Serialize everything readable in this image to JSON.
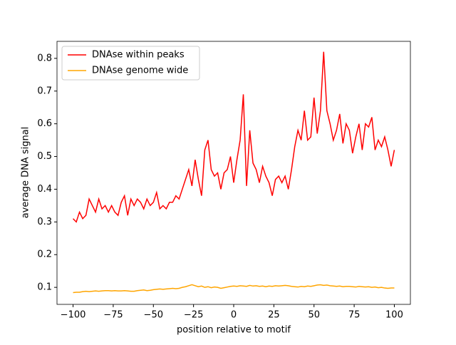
{
  "chart_data": {
    "type": "line",
    "xlabel": "position relative to motif",
    "ylabel": "average DNA signal",
    "legend": "upper left",
    "xlim": [
      -110,
      110
    ],
    "ylim": [
      0.048,
      0.852
    ],
    "xticks": [
      {
        "value": -100,
        "label": "−100"
      },
      {
        "value": -75,
        "label": "−75"
      },
      {
        "value": -50,
        "label": "−50"
      },
      {
        "value": -25,
        "label": "−25"
      },
      0,
      25,
      50,
      75,
      100
    ],
    "yticks": [
      0.1,
      0.2,
      0.3,
      0.4,
      0.5,
      0.6,
      0.7,
      0.8
    ],
    "x": [
      -100,
      -98,
      -96,
      -94,
      -92,
      -90,
      -88,
      -86,
      -84,
      -82,
      -80,
      -78,
      -76,
      -74,
      -72,
      -70,
      -68,
      -66,
      -64,
      -62,
      -60,
      -58,
      -56,
      -54,
      -52,
      -50,
      -48,
      -46,
      -44,
      -42,
      -40,
      -38,
      -36,
      -34,
      -32,
      -30,
      -28,
      -26,
      -24,
      -22,
      -20,
      -18,
      -16,
      -14,
      -12,
      -10,
      -8,
      -6,
      -4,
      -2,
      0,
      2,
      4,
      6,
      8,
      10,
      12,
      14,
      16,
      18,
      20,
      22,
      24,
      26,
      28,
      30,
      32,
      34,
      36,
      38,
      40,
      42,
      44,
      46,
      48,
      50,
      52,
      54,
      56,
      58,
      60,
      62,
      64,
      66,
      68,
      70,
      72,
      74,
      76,
      78,
      80,
      82,
      84,
      86,
      88,
      90,
      92,
      94,
      96,
      98,
      100
    ],
    "series": [
      {
        "name": "DNAse within peaks",
        "color": "#ff0000",
        "values": [
          0.31,
          0.3,
          0.33,
          0.31,
          0.32,
          0.37,
          0.35,
          0.33,
          0.37,
          0.34,
          0.35,
          0.33,
          0.35,
          0.33,
          0.32,
          0.36,
          0.38,
          0.32,
          0.37,
          0.35,
          0.37,
          0.36,
          0.34,
          0.37,
          0.35,
          0.36,
          0.39,
          0.34,
          0.35,
          0.34,
          0.36,
          0.36,
          0.38,
          0.37,
          0.4,
          0.43,
          0.46,
          0.41,
          0.49,
          0.43,
          0.38,
          0.52,
          0.55,
          0.46,
          0.44,
          0.45,
          0.4,
          0.45,
          0.46,
          0.5,
          0.42,
          0.49,
          0.55,
          0.69,
          0.41,
          0.58,
          0.48,
          0.46,
          0.42,
          0.47,
          0.44,
          0.42,
          0.38,
          0.43,
          0.44,
          0.42,
          0.44,
          0.4,
          0.46,
          0.53,
          0.58,
          0.55,
          0.64,
          0.55,
          0.56,
          0.68,
          0.57,
          0.64,
          0.82,
          0.64,
          0.6,
          0.55,
          0.58,
          0.63,
          0.54,
          0.6,
          0.58,
          0.51,
          0.56,
          0.6,
          0.52,
          0.6,
          0.59,
          0.62,
          0.52,
          0.55,
          0.53,
          0.56,
          0.52,
          0.47,
          0.52
        ]
      },
      {
        "name": "DNAse genome wide",
        "color": "#ffa500",
        "values": [
          0.084,
          0.085,
          0.085,
          0.087,
          0.088,
          0.087,
          0.088,
          0.089,
          0.088,
          0.089,
          0.09,
          0.09,
          0.089,
          0.09,
          0.089,
          0.089,
          0.09,
          0.089,
          0.088,
          0.088,
          0.09,
          0.091,
          0.092,
          0.09,
          0.091,
          0.093,
          0.094,
          0.095,
          0.094,
          0.095,
          0.096,
          0.097,
          0.096,
          0.097,
          0.1,
          0.102,
          0.105,
          0.108,
          0.105,
          0.102,
          0.104,
          0.1,
          0.102,
          0.099,
          0.101,
          0.1,
          0.097,
          0.099,
          0.101,
          0.103,
          0.104,
          0.103,
          0.105,
          0.104,
          0.103,
          0.106,
          0.104,
          0.105,
          0.103,
          0.104,
          0.102,
          0.104,
          0.103,
          0.105,
          0.104,
          0.105,
          0.106,
          0.105,
          0.103,
          0.102,
          0.101,
          0.103,
          0.102,
          0.104,
          0.103,
          0.105,
          0.107,
          0.108,
          0.106,
          0.107,
          0.105,
          0.104,
          0.103,
          0.104,
          0.102,
          0.103,
          0.103,
          0.102,
          0.101,
          0.103,
          0.102,
          0.101,
          0.102,
          0.1,
          0.101,
          0.099,
          0.1,
          0.098,
          0.097,
          0.098,
          0.098
        ]
      }
    ]
  }
}
